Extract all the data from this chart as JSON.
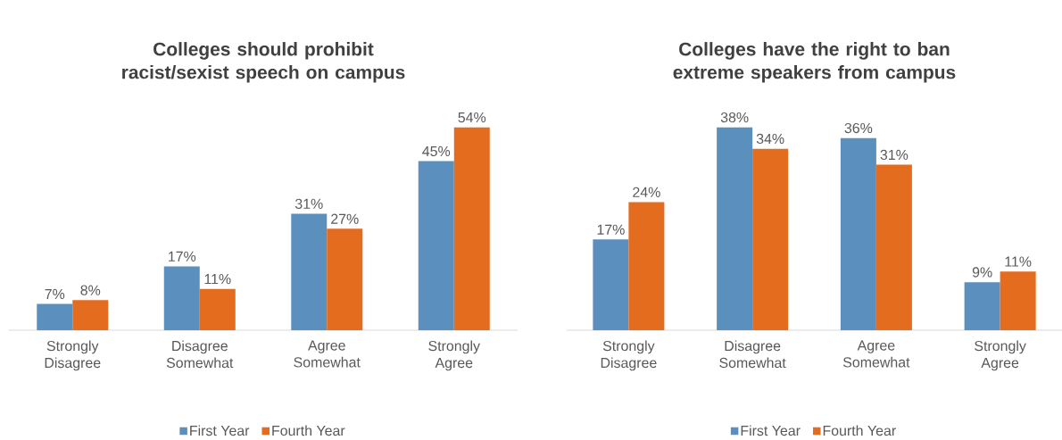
{
  "chart_data": [
    {
      "type": "bar",
      "title": "Colleges should prohibit racist/sexist speech on campus",
      "categories": [
        "Strongly Disagree",
        "Disagree Somewhat",
        "Agree Somewhat",
        "Strongly Agree"
      ],
      "legend": "bottom",
      "series": [
        {
          "name": "First Year",
          "color": "#5b8fbd",
          "values": [
            7,
            17,
            31,
            45
          ],
          "value_labels": [
            "7%",
            "17%",
            "31%",
            "45%"
          ]
        },
        {
          "name": "Fourth Year",
          "color": "#e46c1f",
          "values": [
            8,
            11,
            27,
            54
          ],
          "value_labels": [
            "8%",
            "11%",
            "27%",
            "54%"
          ]
        }
      ]
    },
    {
      "type": "bar",
      "title": "Colleges have the right to ban extreme speakers from campus",
      "categories": [
        "Strongly Disagree",
        "Disagree Somewhat",
        "Agree Somewhat",
        "Strongly Agree"
      ],
      "legend": "bottom",
      "series": [
        {
          "name": "First Year",
          "color": "#5b8fbd",
          "values": [
            17,
            38,
            36,
            9
          ],
          "value_labels": [
            "17%",
            "38%",
            "36%",
            "9%"
          ]
        },
        {
          "name": "Fourth Year",
          "color": "#e46c1f",
          "values": [
            24,
            34,
            31,
            11
          ],
          "value_labels": [
            "24%",
            "34%",
            "31%",
            "11%"
          ]
        }
      ]
    }
  ]
}
